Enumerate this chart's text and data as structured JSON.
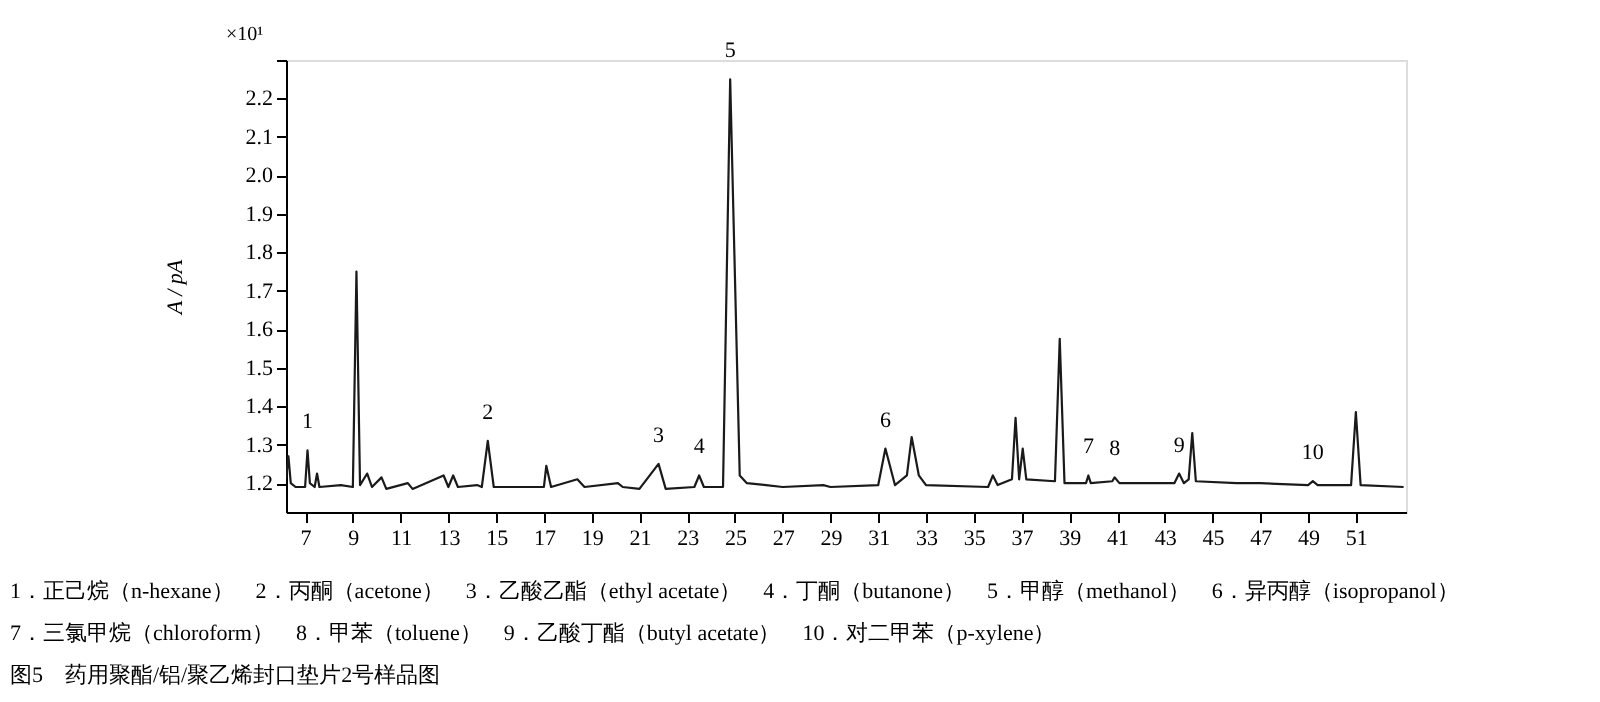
{
  "chart_data": {
    "type": "line",
    "ylabel": "A / pA",
    "color": "#1a1a1a",
    "xlim": [
      6.2,
      53.1
    ],
    "ylim": [
      1.125,
      2.3
    ],
    "xticks": [
      7,
      9,
      11,
      13,
      15,
      17,
      19,
      21,
      23,
      25,
      27,
      29,
      31,
      33,
      35,
      37,
      39,
      41,
      43,
      45,
      47,
      49,
      51
    ],
    "yticks": [
      1.2,
      1.3,
      1.4,
      1.5,
      1.6,
      1.7,
      1.8,
      1.9,
      {
        "value": 2,
        "label": "2.0"
      },
      2.1,
      2.2,
      {
        "value": 2.3,
        "label": null
      }
    ],
    "grid": false,
    "line_style": "solid",
    "marker": "none",
    "x": [
      6.2,
      6.3,
      6.4,
      6.6,
      7.0,
      7.1,
      7.2,
      7.4,
      7.5,
      7.6,
      8.5,
      9.0,
      9.15,
      9.3,
      9.6,
      9.8,
      10.2,
      10.4,
      11.3,
      11.5,
      12.8,
      13.0,
      13.2,
      13.4,
      14.2,
      14.4,
      14.65,
      14.9,
      17.0,
      17.1,
      17.3,
      18.4,
      18.7,
      20.1,
      20.3,
      21.0,
      21.8,
      22.1,
      23.3,
      23.5,
      23.7,
      24.5,
      24.8,
      25.2,
      25.5,
      26.3,
      27.0,
      28.7,
      29.0,
      31.0,
      31.3,
      31.7,
      32.2,
      32.4,
      32.7,
      33.0,
      35.6,
      35.8,
      36.0,
      36.6,
      36.75,
      36.9,
      37.05,
      37.2,
      38.4,
      38.6,
      38.8,
      39.7,
      39.8,
      39.9,
      40.8,
      40.9,
      41.1,
      43.4,
      43.6,
      43.8,
      44.0,
      44.15,
      44.3,
      46.0,
      47.0,
      49.0,
      49.2,
      49.4,
      50.8,
      51.0,
      51.2,
      53.0
    ],
    "values": [
      1.21,
      1.27,
      1.2,
      1.19,
      1.19,
      1.285,
      1.2,
      1.19,
      1.225,
      1.19,
      1.195,
      1.19,
      1.75,
      1.195,
      1.225,
      1.19,
      1.215,
      1.185,
      1.2,
      1.185,
      1.22,
      1.19,
      1.22,
      1.19,
      1.195,
      1.19,
      1.31,
      1.19,
      1.19,
      1.245,
      1.19,
      1.21,
      1.19,
      1.2,
      1.19,
      1.185,
      1.25,
      1.185,
      1.19,
      1.22,
      1.19,
      1.19,
      2.25,
      1.22,
      1.2,
      1.195,
      1.19,
      1.195,
      1.19,
      1.195,
      1.29,
      1.195,
      1.22,
      1.32,
      1.22,
      1.195,
      1.19,
      1.22,
      1.195,
      1.21,
      1.37,
      1.21,
      1.29,
      1.21,
      1.205,
      1.575,
      1.2,
      1.2,
      1.22,
      1.2,
      1.205,
      1.215,
      1.2,
      1.2,
      1.225,
      1.2,
      1.21,
      1.33,
      1.205,
      1.2,
      1.2,
      1.195,
      1.205,
      1.195,
      1.195,
      1.385,
      1.195,
      1.19
    ],
    "annotations": [
      {
        "text": "1",
        "x": 7.1,
        "y": 1.285
      },
      {
        "text": "2",
        "x": 14.65,
        "y": 1.31
      },
      {
        "text": "3",
        "x": 21.8,
        "y": 1.25
      },
      {
        "text": "4",
        "x": 23.5,
        "y": 1.22
      },
      {
        "text": "5",
        "x": 24.8,
        "y": 2.25
      },
      {
        "text": "6",
        "x": 31.3,
        "y": 1.29
      },
      {
        "text": "7",
        "x": 39.8,
        "y": 1.22
      },
      {
        "text": "8",
        "x": 40.9,
        "y": 1.215
      },
      {
        "text": "9",
        "x": 43.6,
        "y": 1.225
      },
      {
        "text": "10",
        "x": 49.2,
        "y": 1.205
      },
      "×10¹",
      "1．正己烷（n-hexane）　2．丙酮（acetone）　3．乙酸乙酯（ethyl acetate）　4．丁酮（butanone）　5．甲醇（methanol）　6．异丙醇（isopropanol）",
      "7．三氯甲烷（chloroform）　8．甲苯（toluene）　9．乙酸丁酯（butyl acetate）　10．对二甲苯（p-xylene）",
      "图5　药用聚酯/铝/聚乙烯封口垫片2号样品图"
    ]
  }
}
